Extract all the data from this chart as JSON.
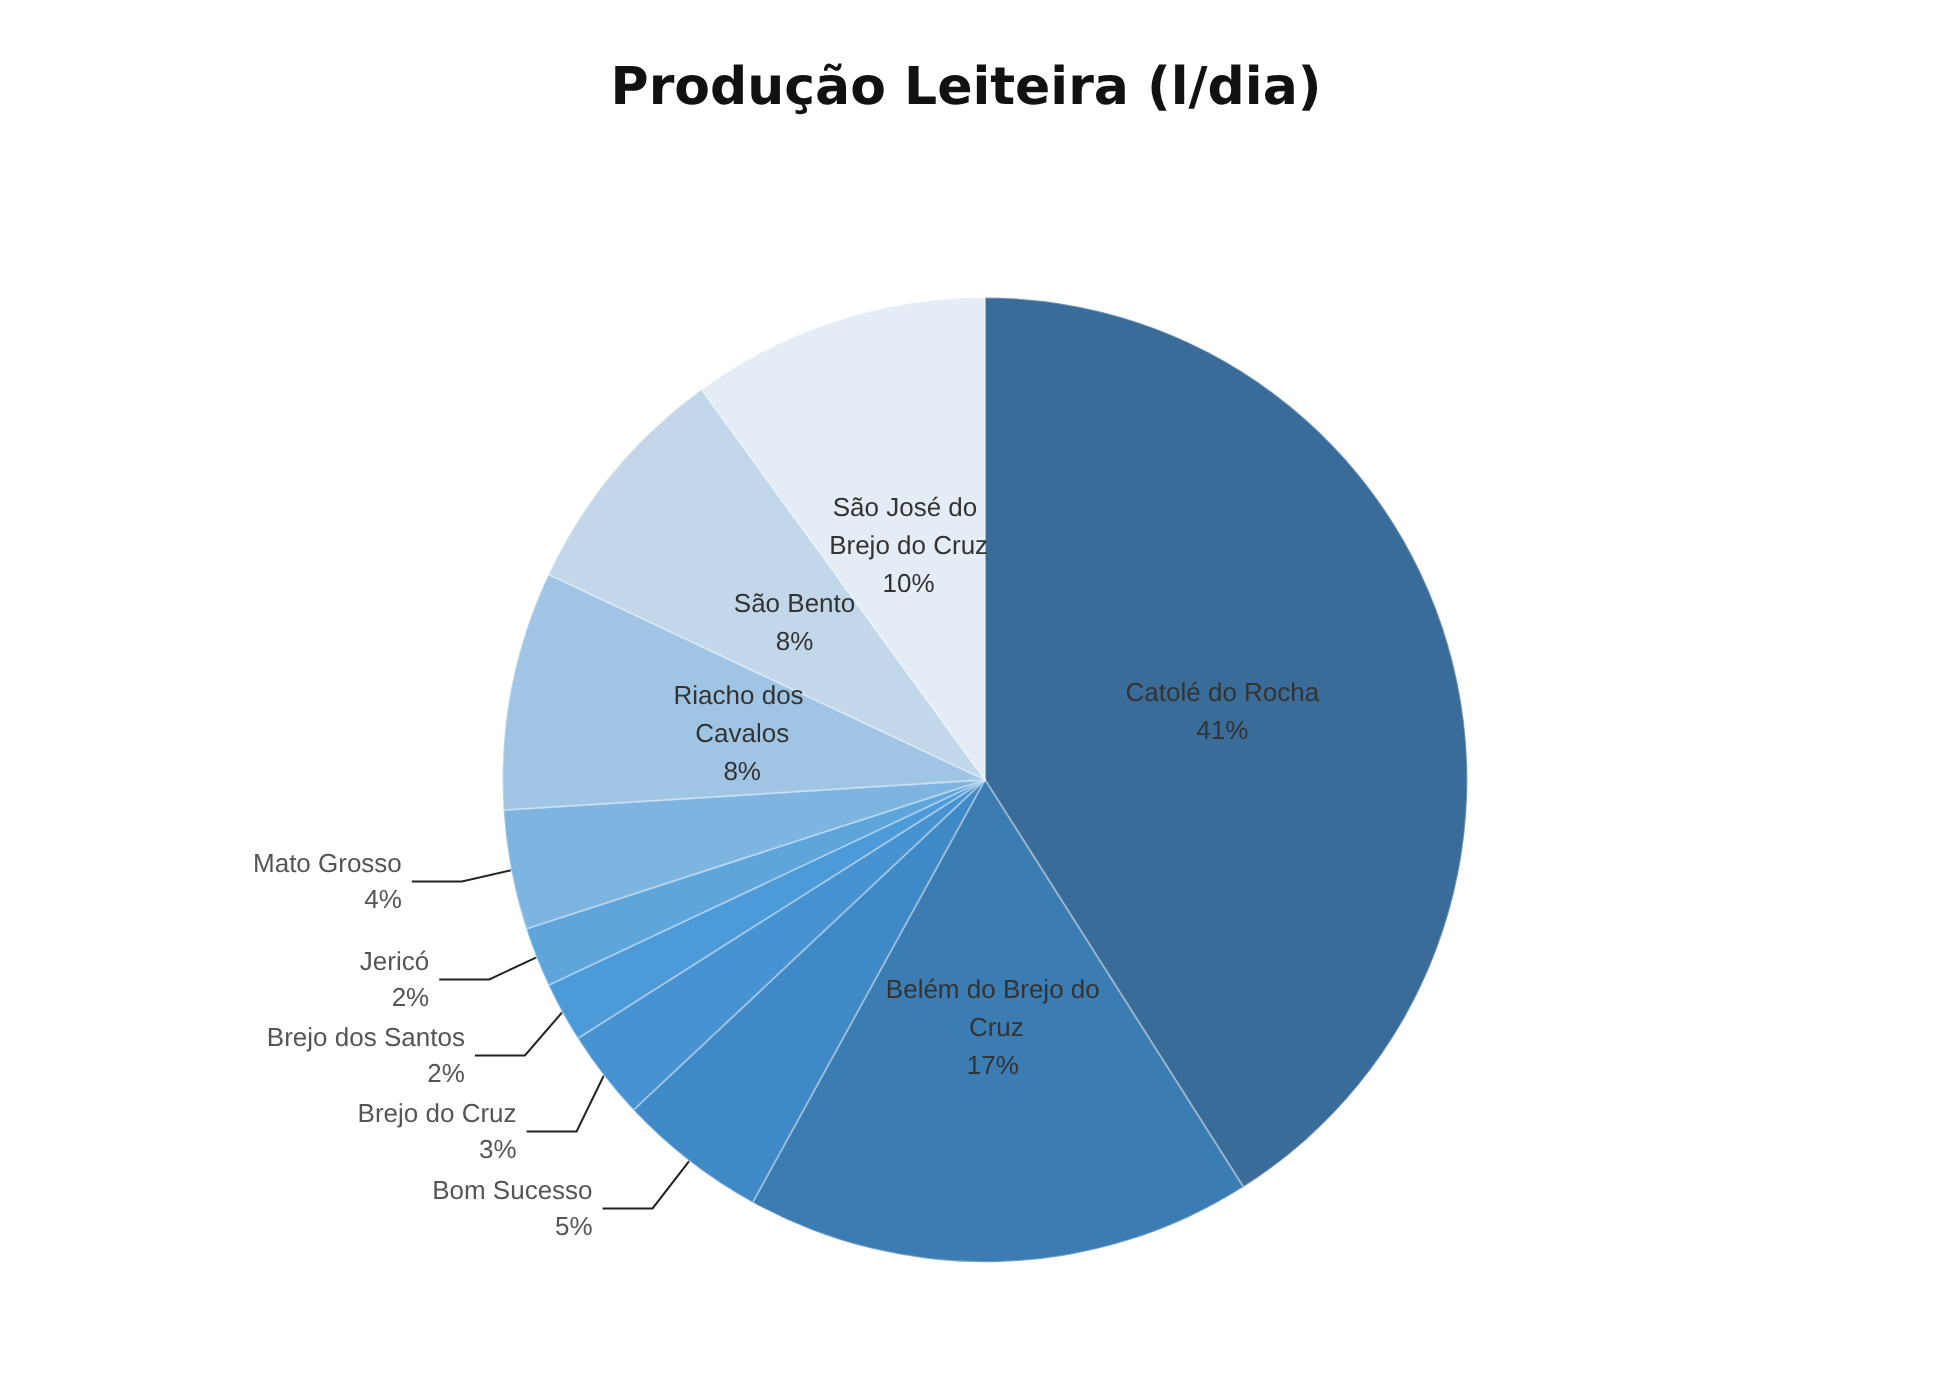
{
  "chart_data": {
    "type": "pie",
    "title": "Produção Leiteira (l/dia)",
    "categories": [
      "Catolé do Rocha",
      "Belém do Brejo do Cruz",
      "Bom Sucesso",
      "Brejo do Cruz",
      "Brejo dos Santos",
      "Jericó",
      "Mato Grosso",
      "Riacho dos Cavalos",
      "São Bento",
      "São José do Brejo do Cruz"
    ],
    "values": [
      41,
      17,
      5,
      3,
      2,
      2,
      4,
      8,
      8,
      10
    ],
    "value_labels": [
      "41%",
      "17%",
      "5%",
      "3%",
      "2%",
      "2%",
      "4%",
      "8%",
      "8%",
      "10%"
    ],
    "colors": [
      "#3a6c99",
      "#3b7cb3",
      "#3f89c6",
      "#4793d2",
      "#4c9ad8",
      "#5ea5dc",
      "#7db5e0",
      "#a0c5e4",
      "#c2d8ea",
      "#e4edf5"
    ],
    "legend": false
  }
}
